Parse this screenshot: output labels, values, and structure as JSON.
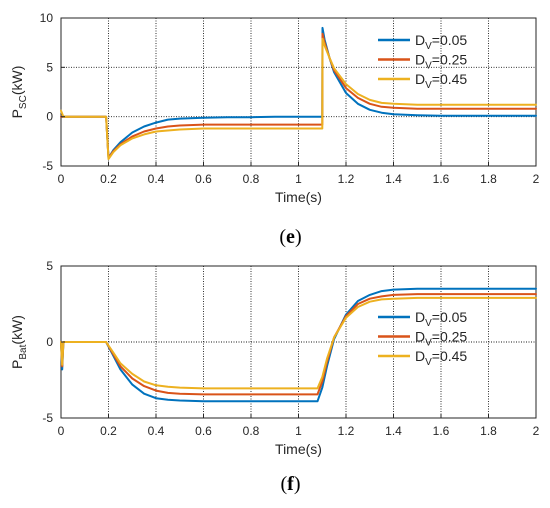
{
  "chart_data": [
    {
      "type": "line",
      "panel_label": "(e)",
      "ylabel_main": "P",
      "ylabel_sub": "SC",
      "ylabel_unit": "(kW)",
      "xlabel": "Time(s)",
      "xlim": [
        0,
        2
      ],
      "ylim": [
        -5,
        10
      ],
      "xticks": [
        0,
        0.2,
        0.4,
        0.6,
        0.8,
        1,
        1.2,
        1.4,
        1.6,
        1.8,
        2
      ],
      "xtick_labels": [
        "0",
        "0.2",
        "0.4",
        "0.6",
        "0.8",
        "1",
        "1.2",
        "1.4",
        "1.6",
        "1.8",
        "2"
      ],
      "yticks": [
        -5,
        0,
        5,
        10
      ],
      "ytick_labels": [
        "-5",
        "0",
        "5",
        "10"
      ],
      "grid": true,
      "legend_position": "top-right",
      "series": [
        {
          "name": "D_V=0.05",
          "label_main": "D",
          "label_sub": "V",
          "label_rest": "=0.05",
          "color": "#0072BD",
          "x": [
            0,
            0.01,
            0.19,
            0.2,
            0.22,
            0.25,
            0.3,
            0.35,
            0.4,
            0.45,
            0.5,
            0.6,
            0.7,
            0.8,
            0.9,
            1.0,
            1.1,
            1.101,
            1.11,
            1.13,
            1.15,
            1.2,
            1.25,
            1.3,
            1.35,
            1.4,
            1.5,
            1.6,
            1.8,
            2.0
          ],
          "y": [
            0,
            0,
            0,
            -4.2,
            -3.4,
            -2.6,
            -1.6,
            -1.0,
            -0.6,
            -0.3,
            -0.2,
            -0.1,
            -0.05,
            -0.05,
            0,
            0,
            0,
            9.0,
            7.8,
            6.0,
            4.5,
            2.4,
            1.3,
            0.7,
            0.4,
            0.25,
            0.15,
            0.1,
            0.1,
            0.1
          ]
        },
        {
          "name": "D_V=0.25",
          "label_main": "D",
          "label_sub": "V",
          "label_rest": "=0.25",
          "color": "#D95319",
          "x": [
            0,
            0.01,
            0.19,
            0.2,
            0.22,
            0.25,
            0.3,
            0.35,
            0.4,
            0.45,
            0.5,
            0.6,
            0.7,
            0.8,
            0.9,
            1.0,
            1.1,
            1.101,
            1.11,
            1.13,
            1.15,
            1.2,
            1.25,
            1.3,
            1.35,
            1.4,
            1.5,
            1.6,
            1.8,
            2.0
          ],
          "y": [
            0,
            0,
            0,
            -4.2,
            -3.5,
            -2.8,
            -2.0,
            -1.5,
            -1.2,
            -1.0,
            -0.9,
            -0.8,
            -0.8,
            -0.8,
            -0.8,
            -0.8,
            -0.8,
            8.4,
            7.5,
            6.0,
            4.7,
            2.9,
            1.9,
            1.3,
            1.0,
            0.9,
            0.8,
            0.8,
            0.8,
            0.8
          ]
        },
        {
          "name": "D_V=0.45",
          "label_main": "D",
          "label_sub": "V",
          "label_rest": "=0.45",
          "color": "#EDB120",
          "x": [
            0,
            0.01,
            0.19,
            0.2,
            0.22,
            0.25,
            0.3,
            0.35,
            0.4,
            0.45,
            0.5,
            0.6,
            0.7,
            0.8,
            0.9,
            1.0,
            1.1,
            1.101,
            1.11,
            1.13,
            1.15,
            1.2,
            1.25,
            1.3,
            1.35,
            1.4,
            1.5,
            1.6,
            1.8,
            2.0
          ],
          "y": [
            0.6,
            0,
            0,
            -4.3,
            -3.6,
            -2.9,
            -2.2,
            -1.8,
            -1.5,
            -1.4,
            -1.3,
            -1.2,
            -1.2,
            -1.2,
            -1.2,
            -1.2,
            -1.2,
            7.9,
            7.2,
            6.0,
            4.9,
            3.3,
            2.3,
            1.7,
            1.4,
            1.3,
            1.2,
            1.2,
            1.2,
            1.2
          ]
        }
      ]
    },
    {
      "type": "line",
      "panel_label": "(f)",
      "ylabel_main": "P",
      "ylabel_sub": "Bat",
      "ylabel_unit": "(kW)",
      "xlabel": "Time(s)",
      "xlim": [
        0,
        2
      ],
      "ylim": [
        -5,
        5
      ],
      "xticks": [
        0,
        0.2,
        0.4,
        0.6,
        0.8,
        1,
        1.2,
        1.4,
        1.6,
        1.8,
        2
      ],
      "xtick_labels": [
        "0",
        "0.2",
        "0.4",
        "0.6",
        "0.8",
        "1",
        "1.2",
        "1.4",
        "1.6",
        "1.8",
        "2"
      ],
      "yticks": [
        -5,
        0,
        5
      ],
      "ytick_labels": [
        "-5",
        "0",
        "5"
      ],
      "grid": true,
      "legend_position": "right",
      "series": [
        {
          "name": "D_V=0.05",
          "label_main": "D",
          "label_sub": "V",
          "label_rest": "=0.05",
          "color": "#0072BD",
          "x": [
            0,
            0.005,
            0.01,
            0.19,
            0.22,
            0.25,
            0.3,
            0.35,
            0.4,
            0.45,
            0.5,
            0.6,
            0.7,
            0.8,
            0.9,
            1.0,
            1.08,
            1.1,
            1.12,
            1.15,
            1.2,
            1.25,
            1.3,
            1.35,
            1.4,
            1.5,
            1.6,
            1.8,
            2.0
          ],
          "y": [
            0,
            -1.8,
            0,
            0,
            -0.9,
            -1.8,
            -2.8,
            -3.4,
            -3.7,
            -3.8,
            -3.85,
            -3.9,
            -3.9,
            -3.9,
            -3.9,
            -3.9,
            -3.9,
            -3.0,
            -1.6,
            0.2,
            1.8,
            2.7,
            3.1,
            3.35,
            3.45,
            3.5,
            3.5,
            3.5,
            3.5
          ]
        },
        {
          "name": "D_V=0.25",
          "label_main": "D",
          "label_sub": "V",
          "label_rest": "=0.25",
          "color": "#D95319",
          "x": [
            0,
            0.005,
            0.01,
            0.19,
            0.22,
            0.25,
            0.3,
            0.35,
            0.4,
            0.45,
            0.5,
            0.6,
            0.7,
            0.8,
            0.9,
            1.0,
            1.08,
            1.1,
            1.12,
            1.15,
            1.2,
            1.25,
            1.3,
            1.35,
            1.4,
            1.5,
            1.6,
            1.8,
            2.0
          ],
          "y": [
            0,
            -1.6,
            0,
            0,
            -0.8,
            -1.6,
            -2.4,
            -2.9,
            -3.2,
            -3.35,
            -3.4,
            -3.45,
            -3.45,
            -3.45,
            -3.45,
            -3.45,
            -3.45,
            -2.6,
            -1.3,
            0.3,
            1.7,
            2.5,
            2.85,
            3.0,
            3.1,
            3.15,
            3.15,
            3.15,
            3.15
          ]
        },
        {
          "name": "D_V=0.45",
          "label_main": "D",
          "label_sub": "V",
          "label_rest": "=0.45",
          "color": "#EDB120",
          "x": [
            0,
            0.005,
            0.01,
            0.19,
            0.22,
            0.25,
            0.3,
            0.35,
            0.4,
            0.45,
            0.5,
            0.6,
            0.7,
            0.8,
            0.9,
            1.0,
            1.08,
            1.1,
            1.12,
            1.15,
            1.2,
            1.25,
            1.3,
            1.35,
            1.4,
            1.5,
            1.6,
            1.8,
            2.0
          ],
          "y": [
            0,
            -1.5,
            0,
            0,
            -0.7,
            -1.4,
            -2.1,
            -2.6,
            -2.85,
            -2.95,
            -3.0,
            -3.05,
            -3.05,
            -3.05,
            -3.05,
            -3.05,
            -3.05,
            -2.3,
            -1.1,
            0.3,
            1.6,
            2.3,
            2.65,
            2.8,
            2.85,
            2.9,
            2.9,
            2.9,
            2.9
          ]
        }
      ]
    }
  ]
}
